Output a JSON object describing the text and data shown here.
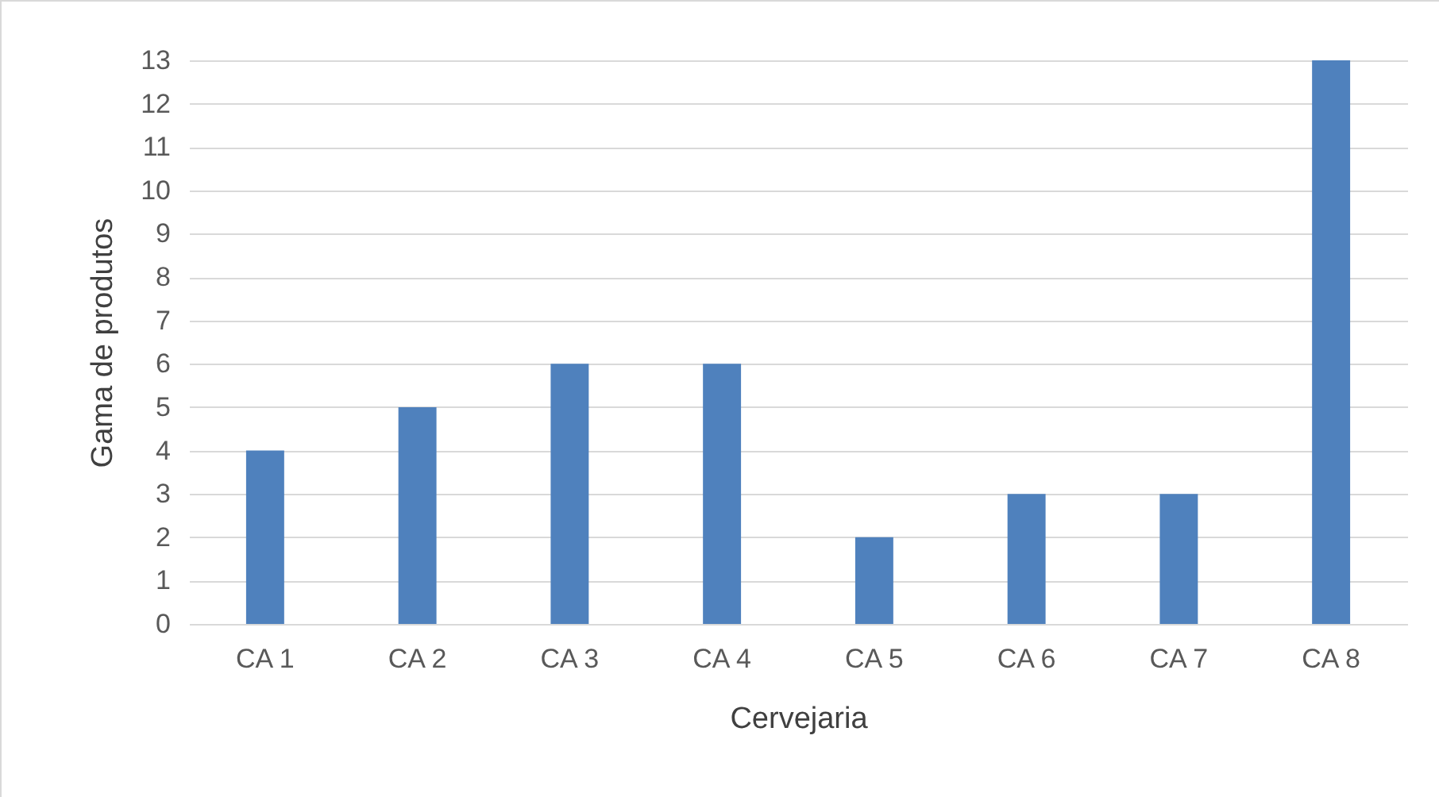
{
  "chart_data": {
    "type": "bar",
    "xlabel": "Cervejaria",
    "ylabel": "Gama de produtos",
    "categories": [
      "CA 1",
      "CA 2",
      "CA 3",
      "CA 4",
      "CA 5",
      "CA 6",
      "CA 7",
      "CA 8"
    ],
    "values": [
      4,
      5,
      6,
      6,
      2,
      3,
      3,
      13
    ],
    "color": "#4f81bd",
    "ylim": [
      0,
      13
    ],
    "yticks": [
      0,
      1,
      2,
      3,
      4,
      5,
      6,
      7,
      8,
      9,
      10,
      11,
      12,
      13
    ],
    "grid": true
  }
}
